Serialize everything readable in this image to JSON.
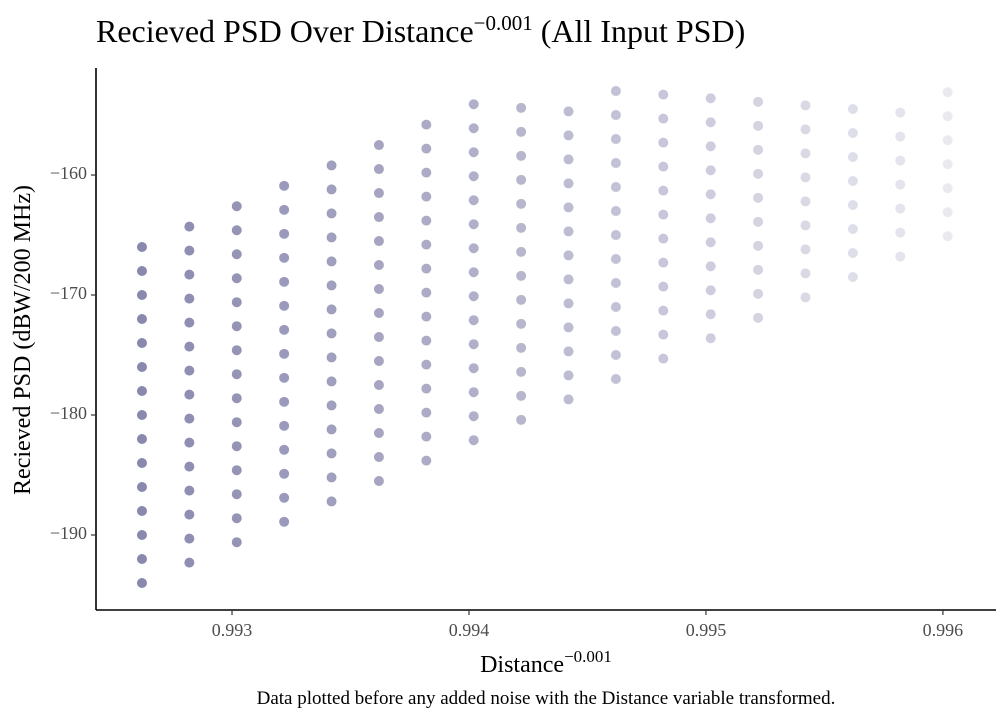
{
  "chart_data": {
    "type": "scatter",
    "title": {
      "text": "Recieved PSD Over Distance",
      "superscript": "−0.001",
      "suffix": "(All Input PSD)"
    },
    "x_label": {
      "text": "Distance",
      "superscript": "−0.001"
    },
    "y_label": "Recieved PSD (dBW/200 MHz)",
    "caption": "Data plotted before any added noise with the Distance variable transformed.",
    "color": "#3b3a7a",
    "xlim": [
      0.992426,
      0.996224
    ],
    "ylim": [
      -196.25,
      -151.08
    ],
    "xticks": [
      0.993,
      0.994,
      0.995,
      0.996
    ],
    "yticks": [
      {
        "value": -190,
        "label": "−190"
      },
      {
        "value": -180,
        "label": "−180"
      },
      {
        "value": -170,
        "label": "−170"
      },
      {
        "value": -160,
        "label": "−160"
      }
    ],
    "x": [
      0.99262,
      0.99282,
      0.99302,
      0.99322,
      0.99342,
      0.99362,
      0.99382,
      0.99402,
      0.99422,
      0.99442,
      0.99462,
      0.99482,
      0.99502,
      0.99522,
      0.99542,
      0.99562,
      0.99582,
      0.99602
    ],
    "series": [
      {
        "values": [
          -194,
          -192.3,
          -190.6,
          -188.9,
          -187.2,
          -185.5,
          -183.8,
          -182.1,
          -180.4,
          -178.7,
          -177,
          -175.3,
          -173.6,
          -171.9,
          -170.2,
          -168.5,
          -166.8,
          -165.1
        ]
      },
      {
        "values": [
          -192,
          -190.3,
          -188.6,
          -186.9,
          -185.2,
          -183.5,
          -181.8,
          -180.1,
          -178.4,
          -176.7,
          -175,
          -173.3,
          -171.6,
          -169.9,
          -168.2,
          -166.5,
          -164.8,
          -163.1
        ]
      },
      {
        "values": [
          -190,
          -188.3,
          -186.6,
          -184.9,
          -183.2,
          -181.5,
          -179.8,
          -178.1,
          -176.4,
          -174.7,
          -173,
          -171.3,
          -169.6,
          -167.9,
          -166.2,
          -164.5,
          -162.8,
          -161.1
        ]
      },
      {
        "values": [
          -188,
          -186.3,
          -184.6,
          -182.9,
          -181.2,
          -179.5,
          -177.8,
          -176.1,
          -174.4,
          -172.7,
          -171,
          -169.3,
          -167.6,
          -165.9,
          -164.2,
          -162.5,
          -160.8,
          -159.1
        ]
      },
      {
        "values": [
          -186,
          -184.3,
          -182.6,
          -180.9,
          -179.2,
          -177.5,
          -175.8,
          -174.1,
          -172.4,
          -170.7,
          -169,
          -167.3,
          -165.6,
          -163.9,
          -162.2,
          -160.5,
          -158.8,
          -157.1
        ]
      },
      {
        "values": [
          -184,
          -182.3,
          -180.6,
          -178.9,
          -177.2,
          -175.5,
          -173.8,
          -172.1,
          -170.4,
          -168.7,
          -167,
          -165.3,
          -163.6,
          -161.9,
          -160.2,
          -158.5,
          -156.8,
          -155.1
        ]
      },
      {
        "values": [
          -182,
          -180.3,
          -178.6,
          -176.9,
          -175.2,
          -173.5,
          -171.8,
          -170.1,
          -168.4,
          -166.7,
          -165,
          -163.3,
          -161.6,
          -159.9,
          -158.2,
          -156.5,
          -154.8,
          -153.1
        ]
      },
      {
        "values": [
          -180,
          -178.3,
          -176.6,
          -174.9,
          -173.2,
          -171.5,
          -169.8,
          -168.1,
          -166.4,
          -164.7,
          -163,
          -161.3,
          -159.6,
          -157.9,
          -156.2,
          -154.5,
          null,
          null
        ]
      },
      {
        "values": [
          -178,
          -176.3,
          -174.6,
          -172.9,
          -171.2,
          -169.5,
          -167.8,
          -166.1,
          -164.4,
          -162.7,
          -161,
          -159.3,
          -157.6,
          -155.9,
          -154.2,
          null,
          null,
          null
        ]
      },
      {
        "values": [
          -176,
          -174.3,
          -172.6,
          -170.9,
          -169.2,
          -167.5,
          -165.8,
          -164.1,
          -162.4,
          -160.7,
          -159,
          -157.3,
          -155.6,
          -153.9,
          null,
          null,
          null,
          null
        ]
      },
      {
        "values": [
          -174,
          -172.3,
          -170.6,
          -168.9,
          -167.2,
          -165.5,
          -163.8,
          -162.1,
          -160.4,
          -158.7,
          -157,
          -155.3,
          -153.6,
          null,
          null,
          null,
          null,
          null
        ]
      },
      {
        "values": [
          -172,
          -170.3,
          -168.6,
          -166.9,
          -165.2,
          -163.5,
          -161.8,
          -160.1,
          -158.4,
          -156.7,
          -155,
          -153.3,
          null,
          null,
          null,
          null,
          null,
          null
        ]
      },
      {
        "values": [
          -170,
          -168.3,
          -166.6,
          -164.9,
          -163.2,
          -161.5,
          -159.8,
          -158.1,
          -156.4,
          -154.7,
          -153,
          null,
          null,
          null,
          null,
          null,
          null,
          null
        ]
      },
      {
        "values": [
          -168,
          -166.3,
          -164.6,
          -162.9,
          -161.2,
          -159.5,
          -157.8,
          -156.1,
          -154.4,
          null,
          null,
          null,
          null,
          null,
          null,
          null,
          null,
          null
        ]
      },
      {
        "values": [
          -166,
          -164.3,
          -162.6,
          -160.9,
          -159.2,
          -157.5,
          -155.8,
          -154.1,
          null,
          null,
          null,
          null,
          null,
          null,
          null,
          null,
          null,
          null
        ]
      }
    ]
  }
}
